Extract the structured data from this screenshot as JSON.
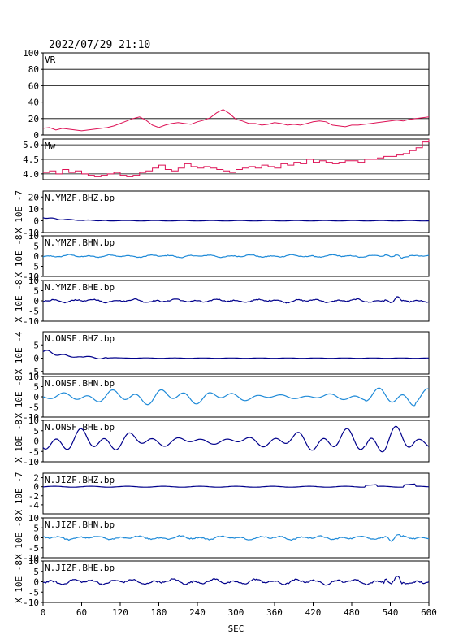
{
  "title": "2022/07/29 21:10",
  "chart_data": [
    {
      "type": "line",
      "id": "vr",
      "panel_label": "VR",
      "ylabel": "",
      "ylim": [
        0,
        100
      ],
      "yticks": [
        "100",
        "80",
        "60",
        "40",
        "20",
        "0"
      ],
      "grid": true,
      "color": "#dd1155",
      "x": [
        0,
        10,
        20,
        30,
        40,
        50,
        60,
        70,
        80,
        90,
        100,
        110,
        120,
        130,
        140,
        150,
        160,
        170,
        180,
        190,
        200,
        210,
        220,
        230,
        240,
        250,
        260,
        270,
        280,
        290,
        300,
        310,
        320,
        330,
        340,
        350,
        360,
        370,
        380,
        390,
        400,
        410,
        420,
        430,
        440,
        450,
        460,
        470,
        480,
        490,
        500,
        510,
        520,
        530,
        540,
        550,
        560,
        570,
        580,
        590,
        600
      ],
      "values": [
        8,
        9,
        6,
        8,
        7,
        6,
        5,
        6,
        7,
        8,
        9,
        11,
        14,
        17,
        20,
        22,
        18,
        12,
        9,
        12,
        14,
        15,
        14,
        13,
        16,
        18,
        21,
        27,
        31,
        26,
        19,
        17,
        14,
        14,
        12,
        13,
        15,
        14,
        12,
        13,
        12,
        14,
        16,
        17,
        16,
        12,
        11,
        10,
        12,
        12,
        13,
        14,
        15,
        16,
        17,
        18,
        17,
        19,
        20,
        21,
        22
      ]
    },
    {
      "type": "line",
      "id": "mw",
      "panel_label": "Mw",
      "ylabel": "",
      "ylim": [
        3.8,
        5.2
      ],
      "yticks": [
        "5.0",
        "4.5",
        "4.0"
      ],
      "grid": true,
      "color": "#dd1155",
      "step": true,
      "x": [
        0,
        10,
        20,
        30,
        40,
        50,
        60,
        70,
        80,
        90,
        100,
        110,
        120,
        130,
        140,
        150,
        160,
        170,
        180,
        190,
        200,
        210,
        220,
        230,
        240,
        250,
        260,
        270,
        280,
        290,
        300,
        310,
        320,
        330,
        340,
        350,
        360,
        370,
        380,
        390,
        400,
        410,
        420,
        430,
        440,
        450,
        460,
        470,
        480,
        490,
        500,
        510,
        520,
        530,
        540,
        550,
        560,
        570,
        580,
        590,
        600
      ],
      "values": [
        4.05,
        4.1,
        4.0,
        4.15,
        4.05,
        4.1,
        4.0,
        3.95,
        3.9,
        3.95,
        4.0,
        4.05,
        3.95,
        3.9,
        3.95,
        4.05,
        4.1,
        4.2,
        4.3,
        4.15,
        4.1,
        4.2,
        4.35,
        4.25,
        4.2,
        4.25,
        4.2,
        4.15,
        4.1,
        4.05,
        4.15,
        4.2,
        4.25,
        4.2,
        4.3,
        4.25,
        4.2,
        4.35,
        4.3,
        4.4,
        4.35,
        4.5,
        4.4,
        4.45,
        4.4,
        4.35,
        4.4,
        4.45,
        4.45,
        4.4,
        4.5,
        4.5,
        4.55,
        4.6,
        4.6,
        4.65,
        4.7,
        4.8,
        4.9,
        5.1,
        5.2
      ]
    },
    {
      "type": "line",
      "id": "ymzf-bhz",
      "panel_label": "N.YMZF.BHZ.bp",
      "ylabel": "X 10E -7",
      "ylim": [
        -10,
        25
      ],
      "yticks": [
        "20",
        "10",
        "0",
        "-10"
      ],
      "color": "#00008b",
      "wave": "decay",
      "amp": 0.6
    },
    {
      "type": "line",
      "id": "ymzf-bhn",
      "panel_label": "N.YMZF.BHN.bp",
      "ylabel": "X 10E -8",
      "ylim": [
        -10,
        10
      ],
      "yticks": [
        "10",
        "5",
        "0",
        "-5",
        "-10"
      ],
      "color": "#1e8ad8",
      "wave": "ripple",
      "amp": 0.6
    },
    {
      "type": "line",
      "id": "ymzf-bhe",
      "panel_label": "N.YMZF.BHE.bp",
      "ylabel": "X 10E -8",
      "ylim": [
        -10,
        10
      ],
      "yticks": [
        "10",
        "5",
        "0",
        "-5",
        "-10"
      ],
      "color": "#00008b",
      "wave": "ripple",
      "amp": 0.8
    },
    {
      "type": "line",
      "id": "onsf-bhz",
      "panel_label": "N.ONSF.BHZ.bp",
      "ylabel": "X 10E -4",
      "ylim": [
        -6,
        10
      ],
      "yticks": [
        "5",
        "0",
        "-5"
      ],
      "color": "#00008b",
      "wave": "decay",
      "amp": 0.25
    },
    {
      "type": "line",
      "id": "onsf-bhn",
      "panel_label": "N.ONSF.BHN.bp",
      "ylabel": "X 10E -8",
      "ylim": [
        -10,
        10
      ],
      "yticks": [
        "10",
        "5",
        "0",
        "-5",
        "-10"
      ],
      "color": "#1e8ad8",
      "wave": "wave",
      "amp": 2.2
    },
    {
      "type": "line",
      "id": "onsf-bhe",
      "panel_label": "N.ONSF.BHE.bp",
      "ylabel": "X 10E -8",
      "ylim": [
        -10,
        10
      ],
      "yticks": [
        "10",
        "5",
        "0",
        "-5",
        "-10"
      ],
      "color": "#00008b",
      "wave": "wave",
      "amp": 3.2
    },
    {
      "type": "line",
      "id": "jizf-bhz",
      "panel_label": "N.JIZF.BHZ.bp",
      "ylabel": "X 10E -7",
      "ylim": [
        -6,
        3
      ],
      "yticks": [
        "2",
        "0",
        "-2",
        "-4"
      ],
      "color": "#00008b",
      "wave": "flat",
      "amp": 0.1
    },
    {
      "type": "line",
      "id": "jizf-bhn",
      "panel_label": "N.JIZF.BHN.bp",
      "ylabel": "X 10E -8",
      "ylim": [
        -10,
        10
      ],
      "yticks": [
        "10",
        "5",
        "0",
        "-5",
        "-10"
      ],
      "color": "#1e8ad8",
      "wave": "ripple",
      "amp": 0.9
    },
    {
      "type": "line",
      "id": "jizf-bhe",
      "panel_label": "N.JIZF.BHE.bp",
      "ylabel": "X 10E -8",
      "ylim": [
        -10,
        10
      ],
      "yticks": [
        "10",
        "5",
        "0",
        "-5",
        "-10"
      ],
      "color": "#00008b",
      "wave": "ripple",
      "amp": 1.2
    }
  ],
  "x_axis": {
    "label": "SEC",
    "xlim": [
      0,
      600
    ],
    "ticks": [
      "0",
      "60",
      "120",
      "180",
      "240",
      "300",
      "360",
      "420",
      "480",
      "540",
      "600"
    ]
  }
}
